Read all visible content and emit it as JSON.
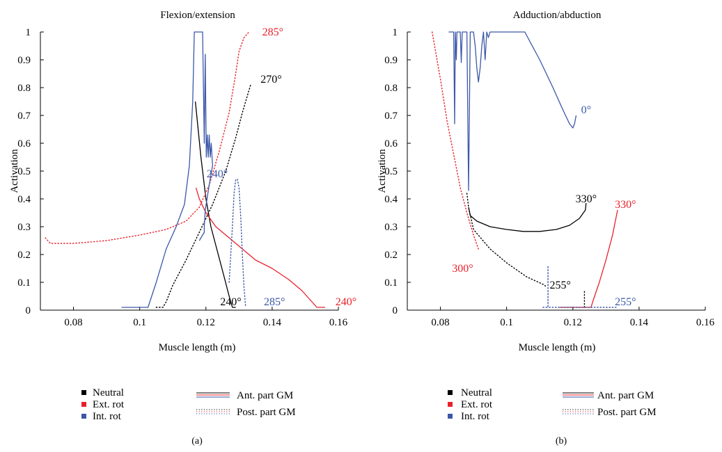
{
  "colors": {
    "neutral": "#000000",
    "ext_rot": "#e8212a",
    "int_rot": "#3b57a7"
  },
  "legend": {
    "markers": [
      {
        "label": "Neutral",
        "color": "#000000"
      },
      {
        "label": "Ext. rot",
        "color": "#e8212a"
      },
      {
        "label": "Int. rot",
        "color": "#3b57a7"
      }
    ],
    "line_styles": [
      {
        "label": "Ant. part GM",
        "style": "solid"
      },
      {
        "label": "Post. part GM",
        "style": "dotted"
      }
    ]
  },
  "chart_data": [
    {
      "type": "line",
      "panel_label": "(a)",
      "title": "Flexion/extension",
      "xlabel": "Muscle length (m)",
      "ylabel": "Activation",
      "xlim": [
        0.07,
        0.16
      ],
      "ylim": [
        0,
        1
      ],
      "x_ticks": [
        "0.08",
        "0.1",
        "0.12",
        "0.14",
        "0.16"
      ],
      "y_ticks": [
        "0",
        "0.1",
        "0.2",
        "0.3",
        "0.4",
        "0.5",
        "0.6",
        "0.7",
        "0.8",
        "0.9",
        "1"
      ],
      "grid": false,
      "series": [
        {
          "group": "Neutral",
          "part": "Ant. part GM",
          "style": "solid",
          "color": "#000000",
          "x": [
            0.1168,
            0.1185,
            0.12,
            0.1215,
            0.1235,
            0.1255,
            0.1268,
            0.1275,
            0.128,
            0.129
          ],
          "y": [
            0.75,
            0.55,
            0.4,
            0.3,
            0.21,
            0.12,
            0.06,
            0.03,
            0.01,
            0.01
          ]
        },
        {
          "group": "Neutral",
          "part": "Post. part GM",
          "style": "dotted",
          "color": "#000000",
          "x": [
            0.105,
            0.107,
            0.108,
            0.11,
            0.114,
            0.118,
            0.122,
            0.126,
            0.129,
            0.131,
            0.1325,
            0.1335
          ],
          "y": [
            0.01,
            0.01,
            0.03,
            0.09,
            0.18,
            0.28,
            0.38,
            0.5,
            0.62,
            0.71,
            0.77,
            0.81
          ]
        },
        {
          "group": "Ext. rot",
          "part": "Ant. part GM",
          "style": "solid",
          "color": "#e8212a",
          "x": [
            0.117,
            0.118,
            0.12,
            0.123,
            0.127,
            0.131,
            0.135,
            0.14,
            0.145,
            0.149,
            0.152,
            0.1535,
            0.156
          ],
          "y": [
            0.44,
            0.4,
            0.35,
            0.3,
            0.26,
            0.22,
            0.18,
            0.15,
            0.11,
            0.07,
            0.03,
            0.01,
            0.01
          ]
        },
        {
          "group": "Ext. rot",
          "part": "Post. part GM",
          "style": "dotted",
          "color": "#e8212a",
          "x": [
            0.0715,
            0.073,
            0.08,
            0.09,
            0.1,
            0.108,
            0.114,
            0.118,
            0.121,
            0.124,
            0.127,
            0.129,
            0.13,
            0.1315,
            0.133
          ],
          "y": [
            0.26,
            0.24,
            0.24,
            0.25,
            0.27,
            0.29,
            0.32,
            0.37,
            0.45,
            0.57,
            0.71,
            0.85,
            0.93,
            0.98,
            1.0
          ]
        },
        {
          "group": "Int. rot",
          "part": "Ant. part GM",
          "style": "solid",
          "color": "#3b57a7",
          "x": [
            0.0945,
            0.1025,
            0.105,
            0.108,
            0.111,
            0.1135,
            0.115,
            0.116,
            0.1165,
            0.1175,
            0.119,
            0.1195,
            0.1198,
            0.1201,
            0.1204,
            0.1207,
            0.121,
            0.1213,
            0.1216,
            0.122,
            0.121,
            0.1198,
            0.1195,
            0.1195,
            0.1185,
            0.118
          ],
          "y": [
            0.01,
            0.01,
            0.1,
            0.22,
            0.3,
            0.38,
            0.52,
            0.75,
            1.0,
            1.0,
            1.0,
            0.6,
            0.92,
            0.55,
            0.63,
            0.55,
            0.63,
            0.55,
            0.6,
            0.52,
            0.45,
            0.36,
            0.3,
            0.28,
            0.26,
            0.25
          ]
        },
        {
          "group": "Int. rot",
          "part": "Post. part GM",
          "style": "dotted",
          "color": "#3b57a7",
          "x": [
            0.127,
            0.128,
            0.1285,
            0.129,
            0.1295,
            0.13,
            0.1305,
            0.131,
            0.1315,
            0.132
          ],
          "y": [
            0.1,
            0.3,
            0.42,
            0.47,
            0.47,
            0.44,
            0.34,
            0.2,
            0.08,
            0.01
          ]
        }
      ],
      "annotations": [
        {
          "text": "285°",
          "color": "#e8212a",
          "x": 0.137,
          "y": 1.0
        },
        {
          "text": "270°",
          "color": "#000000",
          "x": 0.1365,
          "y": 0.83
        },
        {
          "text": "240°",
          "color": "#3b57a7",
          "x": 0.1202,
          "y": 0.49
        },
        {
          "text": "240°",
          "color": "#000000",
          "x": 0.1243,
          "y": 0.03
        },
        {
          "text": "285°",
          "color": "#3b57a7",
          "x": 0.1375,
          "y": 0.03
        },
        {
          "text": "240°",
          "color": "#e8212a",
          "x": 0.1591,
          "y": 0.03
        }
      ]
    },
    {
      "type": "line",
      "panel_label": "(b)",
      "title": "Adduction/abduction",
      "xlabel": "Muscle length (m)",
      "ylabel": "Activation",
      "xlim": [
        0.07,
        0.16
      ],
      "ylim": [
        0,
        1
      ],
      "x_ticks": [
        "0.08",
        "0.1",
        "0.12",
        "0.14",
        "0.16"
      ],
      "y_ticks": [
        "0",
        "0.1",
        "0.2",
        "0.3",
        "0.4",
        "0.5",
        "0.6",
        "0.7",
        "0.8",
        "0.9",
        "1"
      ],
      "grid": false,
      "series": [
        {
          "group": "Neutral",
          "part": "Ant. part GM",
          "style": "solid",
          "color": "#000000",
          "x": [
            0.0885,
            0.089,
            0.091,
            0.095,
            0.1,
            0.105,
            0.11,
            0.115,
            0.119,
            0.122,
            0.1238,
            0.124
          ],
          "y": [
            0.37,
            0.34,
            0.32,
            0.3,
            0.29,
            0.283,
            0.283,
            0.29,
            0.305,
            0.33,
            0.36,
            0.385
          ]
        },
        {
          "group": "Neutral",
          "part": "Post. part GM",
          "style": "dotted",
          "color": "#000000",
          "x": [
            0.088,
            0.0885,
            0.09,
            0.095,
            0.1,
            0.106,
            0.1115,
            0.112
          ],
          "y": [
            0.42,
            0.37,
            0.29,
            0.22,
            0.17,
            0.12,
            0.09,
            0.08
          ]
        },
        {
          "group": "Neutral",
          "part": "Post. part GM",
          "style": "dotted",
          "color": "#000000",
          "x": [
            0.1235,
            0.1235,
            0.1235
          ],
          "y": [
            0.01,
            0.04,
            0.07
          ]
        },
        {
          "group": "Ext. rot",
          "part": "Ant. part GM",
          "style": "solid",
          "color": "#e8212a",
          "x": [
            0.116,
            0.1255,
            0.126,
            0.128,
            0.13,
            0.132,
            0.1335
          ],
          "y": [
            0.01,
            0.01,
            0.03,
            0.1,
            0.18,
            0.27,
            0.36
          ]
        },
        {
          "group": "Ext. rot",
          "part": "Post. part GM",
          "style": "dotted",
          "color": "#e8212a",
          "x": [
            0.0775,
            0.08,
            0.082,
            0.084,
            0.086,
            0.088,
            0.09,
            0.0915
          ],
          "y": [
            1.0,
            0.83,
            0.68,
            0.56,
            0.44,
            0.35,
            0.27,
            0.22
          ]
        },
        {
          "group": "Int. rot",
          "part": "Ant. part GM",
          "style": "solid",
          "color": "#3b57a7",
          "x": [
            0.0825,
            0.084,
            0.0843,
            0.0845,
            0.0848,
            0.085,
            0.086,
            0.0863,
            0.0866,
            0.087,
            0.088,
            0.0885,
            0.089,
            0.09,
            0.0905,
            0.091,
            0.0915,
            0.092,
            0.0925,
            0.093,
            0.0935,
            0.094,
            0.0945,
            0.095,
            0.098,
            0.1,
            0.1055,
            0.11,
            0.114,
            0.117,
            0.119,
            0.12,
            0.1205,
            0.121
          ],
          "y": [
            1.0,
            1.0,
            0.67,
            1.0,
            0.9,
            1.0,
            1.0,
            0.89,
            1.0,
            1.0,
            1.0,
            0.43,
            1.0,
            1.0,
            0.95,
            0.87,
            0.82,
            0.87,
            0.95,
            1.0,
            0.9,
            1.0,
            0.98,
            1.0,
            1.0,
            1.0,
            1.0,
            0.9,
            0.8,
            0.72,
            0.67,
            0.655,
            0.67,
            0.7
          ]
        },
        {
          "group": "Int. rot",
          "part": "Post. part GM",
          "style": "dotted",
          "color": "#3b57a7",
          "x": [
            0.111,
            0.1125,
            0.1125,
            0.1125,
            0.113,
            0.115,
            0.12,
            0.125,
            0.13,
            0.1335
          ],
          "y": [
            0.01,
            0.01,
            0.16,
            0.01,
            0.01,
            0.01,
            0.01,
            0.01,
            0.01,
            0.01
          ]
        }
      ],
      "annotations": [
        {
          "text": "0°",
          "color": "#3b57a7",
          "x": 0.1225,
          "y": 0.72
        },
        {
          "text": "330°",
          "color": "#000000",
          "x": 0.1208,
          "y": 0.4
        },
        {
          "text": "330°",
          "color": "#e8212a",
          "x": 0.1327,
          "y": 0.38
        },
        {
          "text": "300°",
          "color": "#e8212a",
          "x": 0.0835,
          "y": 0.15
        },
        {
          "text": "255°",
          "color": "#000000",
          "x": 0.113,
          "y": 0.09
        },
        {
          "text": "255°",
          "color": "#3b57a7",
          "x": 0.1327,
          "y": 0.03
        }
      ]
    }
  ]
}
